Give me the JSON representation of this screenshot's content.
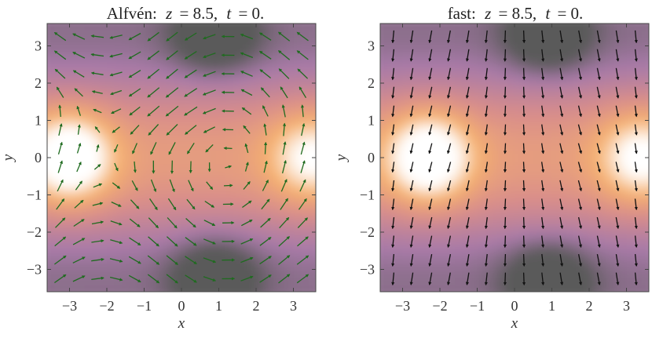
{
  "chart_data": [
    {
      "type": "heatmap",
      "panel": "alfven",
      "title_parts": [
        "Alfvén:",
        "z",
        "= 8.5,",
        "t",
        "= 0."
      ],
      "xlabel": "x",
      "ylabel": "y",
      "xlim": [
        -3.6,
        3.6
      ],
      "ylim": [
        -3.6,
        3.6
      ],
      "xticks": [
        -3,
        -2,
        -1,
        0,
        1,
        2,
        3
      ],
      "yticks": [
        -3,
        -2,
        -1,
        0,
        1,
        2,
        3
      ],
      "tick_labels": [
        "−3",
        "−2",
        "−1",
        "0",
        "1",
        "2",
        "3"
      ],
      "overlay": "vector field",
      "arrow_color": "#1f6b1f",
      "colormap": [
        "#5a5a5a",
        "#a87aa8",
        "#d98e8a",
        "#f5b070",
        "#ffffff"
      ],
      "grid_spacing": 0.5,
      "hot_spots": [
        {
          "x": -3.0,
          "y": 0.0,
          "level": 1.0
        },
        {
          "x": 3.5,
          "y": 0.0,
          "level": 0.7
        }
      ],
      "dark_spots": [
        {
          "x": 0.9,
          "y": 3.3,
          "level": 1.0
        },
        {
          "x": 0.9,
          "y": -3.2,
          "level": 1.0
        }
      ]
    },
    {
      "type": "heatmap",
      "panel": "fast",
      "title_parts": [
        "fast:",
        "z",
        "= 8.5,",
        "t",
        "= 0."
      ],
      "xlabel": "x",
      "ylabel": "y",
      "xlim": [
        -3.6,
        3.6
      ],
      "ylim": [
        -3.6,
        3.6
      ],
      "xticks": [
        -3,
        -2,
        -1,
        0,
        1,
        2,
        3
      ],
      "yticks": [
        -3,
        -2,
        -1,
        0,
        1,
        2,
        3
      ],
      "tick_labels": [
        "−3",
        "−2",
        "−1",
        "0",
        "1",
        "2",
        "3"
      ],
      "overlay": "vector field",
      "arrow_color": "#111111",
      "colormap": [
        "#5a5a5a",
        "#a87aa8",
        "#d98e8a",
        "#f5b070",
        "#ffffff"
      ],
      "grid_spacing": 0.5,
      "hot_spots": [
        {
          "x": -2.3,
          "y": 0.0,
          "level": 1.0
        },
        {
          "x": 3.4,
          "y": 0.0,
          "level": 0.75
        }
      ],
      "dark_spots": [
        {
          "x": 0.9,
          "y": 3.3,
          "level": 1.0
        },
        {
          "x": 0.9,
          "y": -3.3,
          "level": 1.0
        }
      ]
    }
  ]
}
